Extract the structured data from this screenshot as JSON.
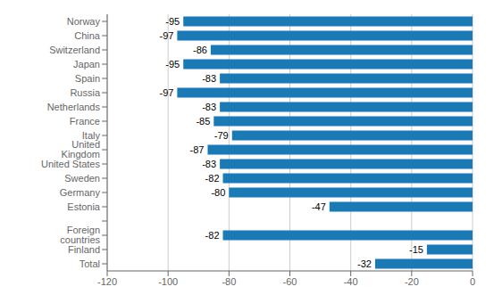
{
  "chart_data": {
    "type": "bar",
    "orientation": "horizontal",
    "categories": [
      "Norway",
      "China",
      "Switzerland",
      "Japan",
      "Spain",
      "Russia",
      "Netherlands",
      "France",
      "Italy",
      "United Kingdom",
      "United States",
      "Sweden",
      "Germany",
      "Estonia",
      null,
      "Foreign countries",
      "Finland",
      "Total"
    ],
    "values": [
      -95,
      -97,
      -86,
      -95,
      -83,
      -97,
      -83,
      -85,
      -79,
      -87,
      -83,
      -82,
      -80,
      -47,
      null,
      -82,
      -15,
      -32
    ],
    "color": "#1a7ab5",
    "xlim": [
      -120,
      0
    ],
    "xticks": [
      -120,
      -100,
      -80,
      -60,
      -40,
      -20,
      0
    ],
    "grid": true,
    "data_labels": true
  }
}
